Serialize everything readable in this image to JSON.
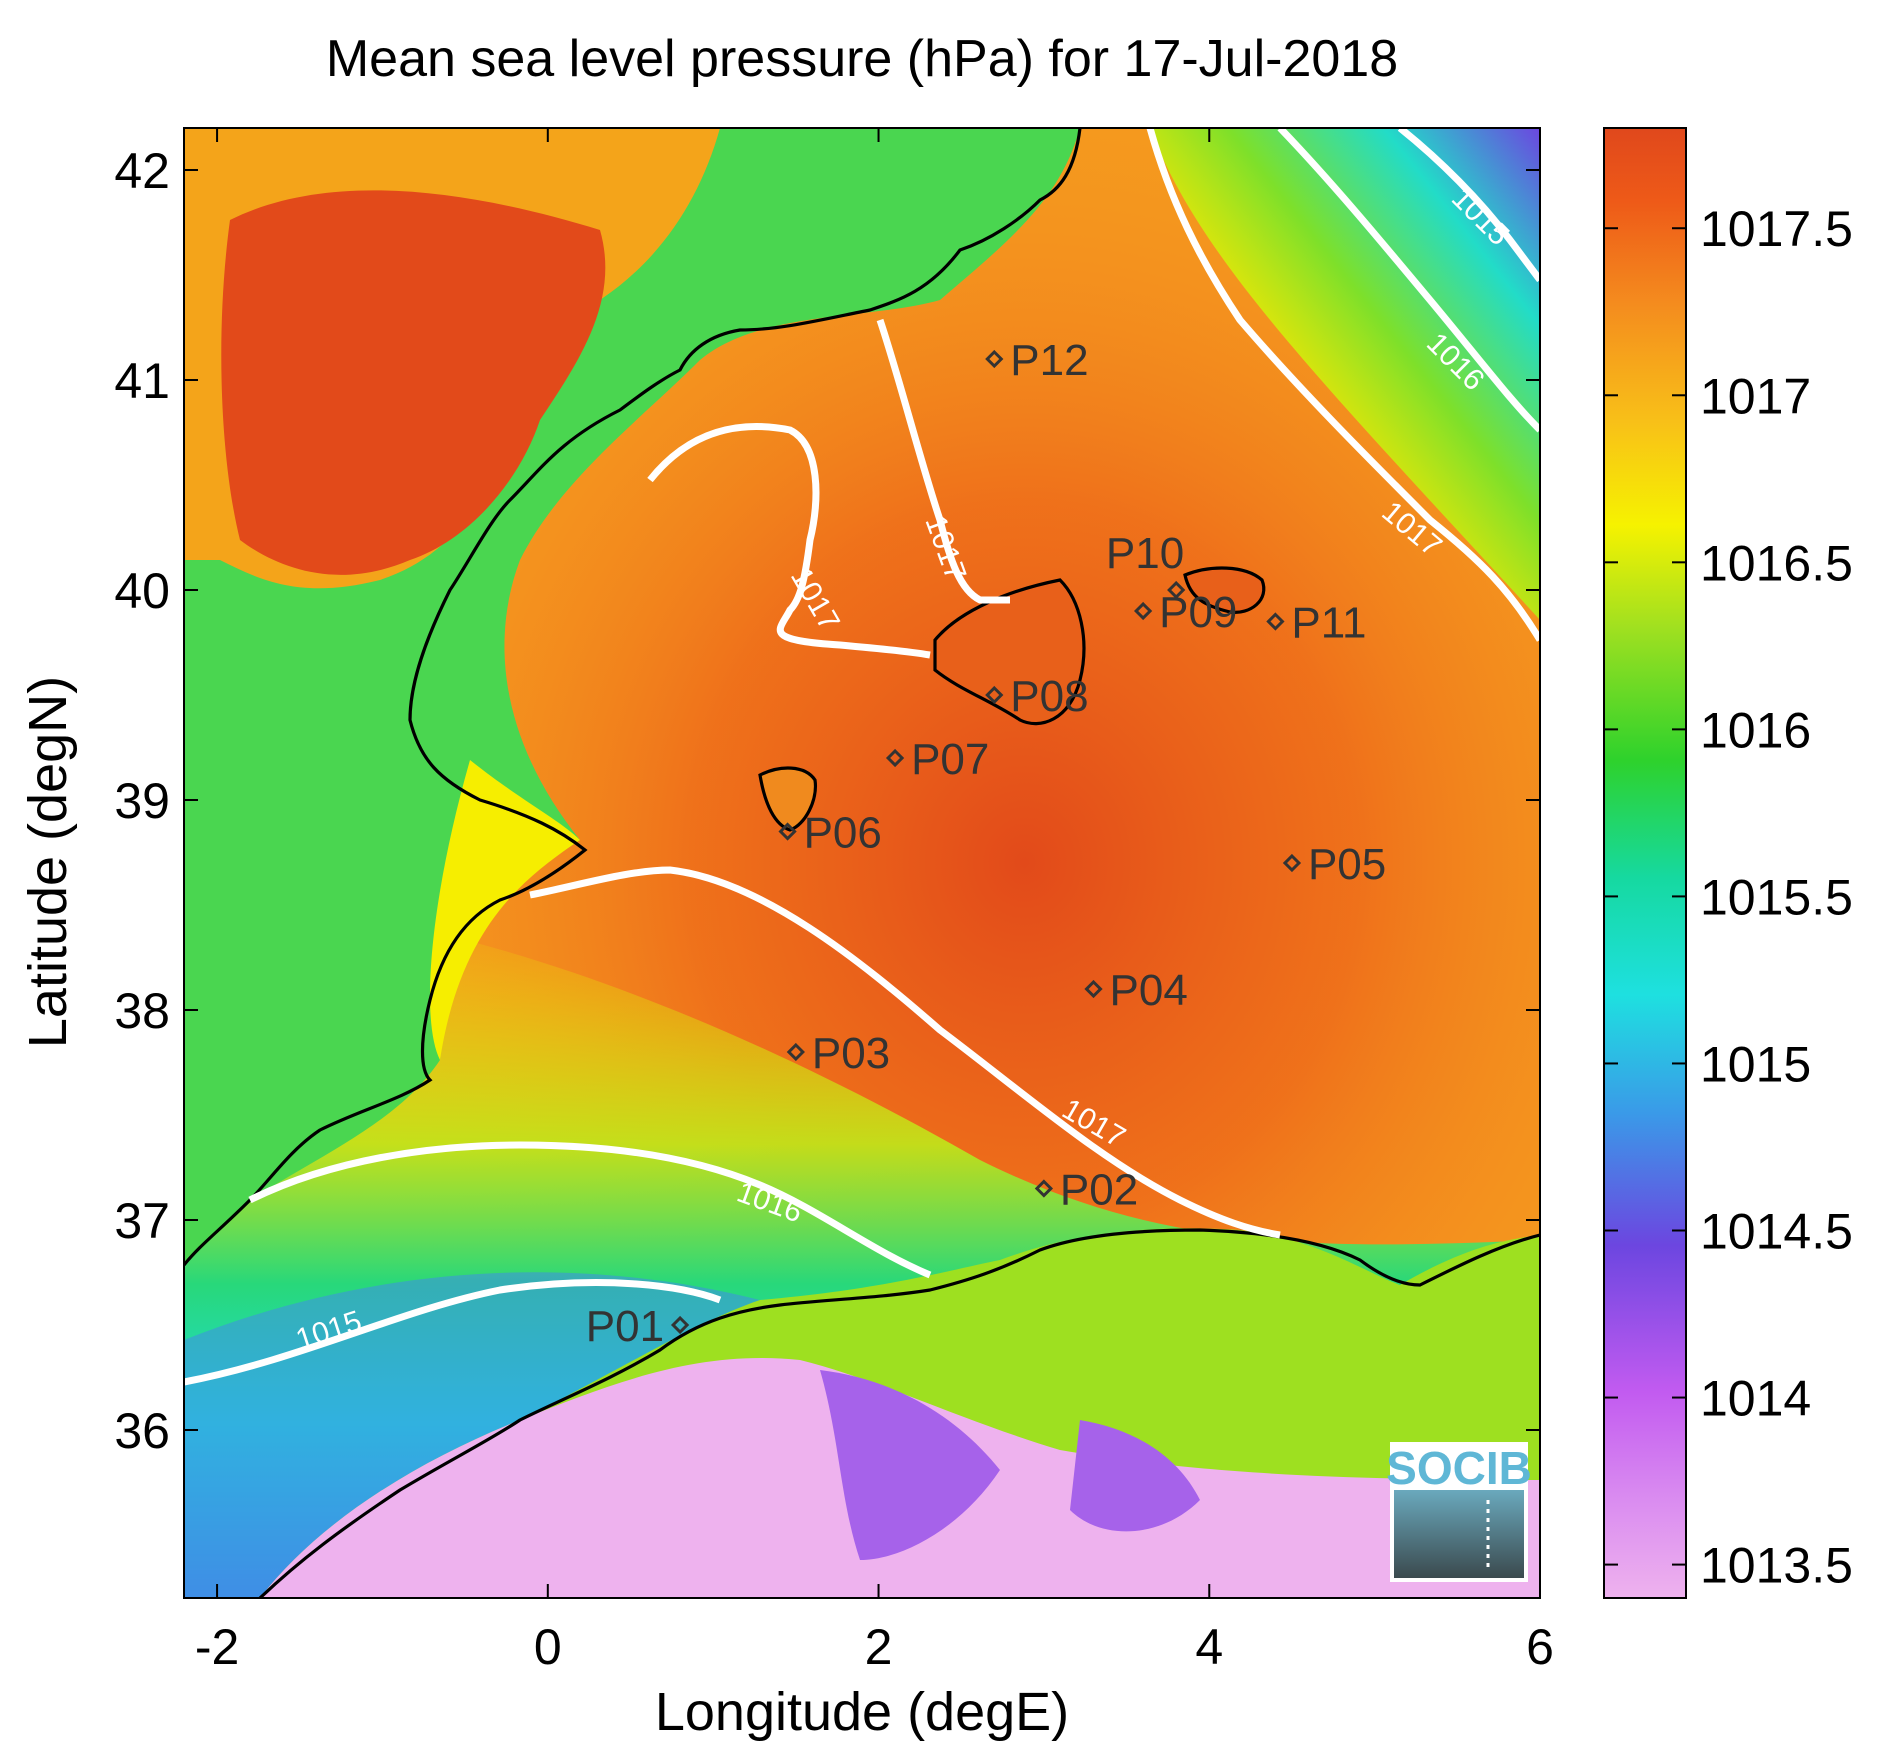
{
  "title": "Mean sea level pressure (hPa) for 17-Jul-2018",
  "x_label": "Longitude (degE)",
  "y_label": "Latitude (degN)",
  "x_ticks": [
    "-2",
    "0",
    "2",
    "4",
    "6"
  ],
  "y_ticks": [
    "36",
    "37",
    "38",
    "39",
    "40",
    "41",
    "42"
  ],
  "colorbar": {
    "ticks": [
      "1013.5",
      "1014",
      "1014.5",
      "1015",
      "1015.5",
      "1016",
      "1016.5",
      "1017",
      "1017.5"
    ],
    "colors": [
      "#eeb2ee",
      "#c25bf0",
      "#6c46e0",
      "#3a9ae8",
      "#1ee0e0",
      "#16d9a0",
      "#2ed22c",
      "#a0e020",
      "#f6f200",
      "#f8c018",
      "#f48c1e",
      "#ee5a18",
      "#e0481c"
    ]
  },
  "contour_labels": [
    "1015",
    "1016",
    "1017",
    "1017",
    "1017",
    "1017",
    "1016",
    "1015"
  ],
  "logo_text": "SOCIB",
  "chart_data": {
    "type": "heatmap",
    "title": "Mean sea level pressure (hPa) for 17-Jul-2018",
    "xlabel": "Longitude (degE)",
    "ylabel": "Latitude (degN)",
    "xlim": [
      -2.2,
      6
    ],
    "ylim": [
      35.2,
      42.2
    ],
    "clim": [
      1013.4,
      1017.8
    ],
    "contour_levels": [
      1015,
      1016,
      1017
    ],
    "points": [
      {
        "name": "P01",
        "lon": 0.8,
        "lat": 36.5
      },
      {
        "name": "P02",
        "lon": 3.0,
        "lat": 37.15
      },
      {
        "name": "P03",
        "lon": 1.5,
        "lat": 37.8
      },
      {
        "name": "P04",
        "lon": 3.3,
        "lat": 38.1
      },
      {
        "name": "P05",
        "lon": 4.5,
        "lat": 38.7
      },
      {
        "name": "P06",
        "lon": 1.45,
        "lat": 38.85
      },
      {
        "name": "P07",
        "lon": 2.1,
        "lat": 39.2
      },
      {
        "name": "P08",
        "lon": 2.7,
        "lat": 39.5
      },
      {
        "name": "P09",
        "lon": 3.6,
        "lat": 39.9
      },
      {
        "name": "P10",
        "lon": 3.8,
        "lat": 40.0
      },
      {
        "name": "P11",
        "lon": 4.4,
        "lat": 39.85
      },
      {
        "name": "P12",
        "lon": 2.7,
        "lat": 41.1
      }
    ]
  }
}
